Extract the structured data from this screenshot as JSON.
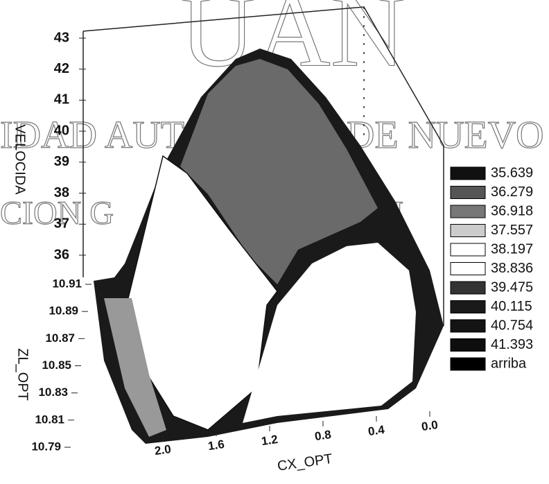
{
  "chart_data": {
    "type": "surface",
    "watermark": [
      "UAN",
      "IDAD AUT",
      "DE NUEVO",
      "CION G",
      "BLI"
    ],
    "z_label": "VELOCIDA",
    "y_label": "ZL_OPT",
    "x_label": "CX_OPT",
    "zlim": [
      36,
      43
    ],
    "zticks": [
      36,
      37,
      38,
      39,
      40,
      41,
      42,
      43
    ],
    "ylim": [
      10.79,
      10.91
    ],
    "yticks": [
      10.79,
      10.81,
      10.83,
      10.85,
      10.87,
      10.89,
      10.91
    ],
    "xlim": [
      2,
      0
    ],
    "xticks": [
      {
        "value": 2,
        "label": "2.0"
      },
      1.6,
      1.2,
      0.8,
      0.4,
      {
        "value": 0,
        "label": "0.0"
      }
    ],
    "legend": {
      "levels": [
        35.639,
        36.279,
        36.918,
        37.557,
        38.197,
        38.836,
        39.475,
        40.115,
        40.754,
        41.393
      ],
      "colors": [
        "#111111",
        "#555555",
        "#777777",
        "#cccccc",
        "#ffffff",
        "#ffffff",
        "#333333",
        "#1a1a1a",
        "#141414",
        "#0e0e0e"
      ],
      "above_label": "arriba",
      "above_color": "#000000"
    }
  }
}
